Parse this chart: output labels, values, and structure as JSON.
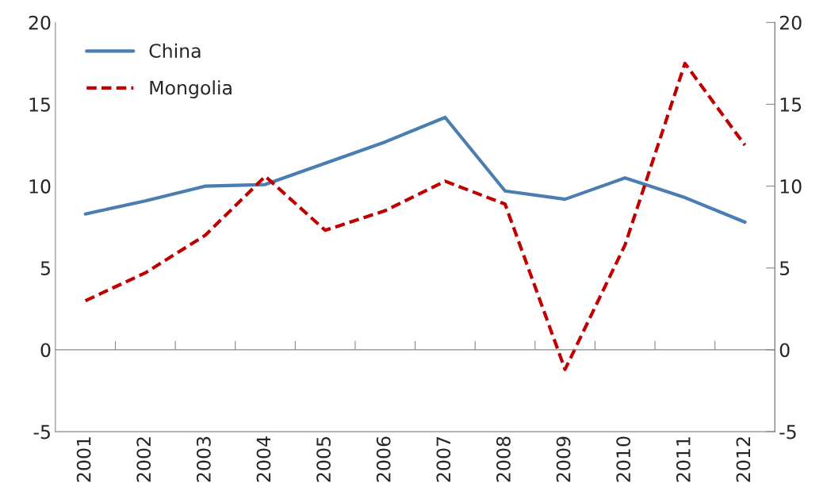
{
  "chart_data": {
    "type": "line",
    "categories": [
      "2001",
      "2002",
      "2003",
      "2004",
      "2005",
      "2006",
      "2007",
      "2008",
      "2009",
      "2010",
      "2011",
      "2012"
    ],
    "series": [
      {
        "name": "China",
        "color": "#4a7eb0",
        "line_style": "solid",
        "values": [
          8.3,
          9.1,
          10.0,
          10.1,
          11.4,
          12.7,
          14.2,
          9.7,
          9.2,
          10.5,
          9.3,
          7.8
        ]
      },
      {
        "name": "Mongolia",
        "color": "#c00000",
        "line_style": "dashed",
        "values": [
          3.0,
          4.7,
          7.0,
          10.6,
          7.3,
          8.5,
          10.3,
          8.9,
          -1.2,
          6.4,
          17.5,
          12.5
        ]
      }
    ],
    "ylim": [
      -5,
      20
    ],
    "yticks": [
      -5,
      0,
      5,
      10,
      15,
      20
    ],
    "y2lim": [
      -5,
      20
    ],
    "y2ticks": [
      -5,
      0,
      5,
      10,
      15,
      20
    ],
    "legend": "top left",
    "marker": "none"
  }
}
